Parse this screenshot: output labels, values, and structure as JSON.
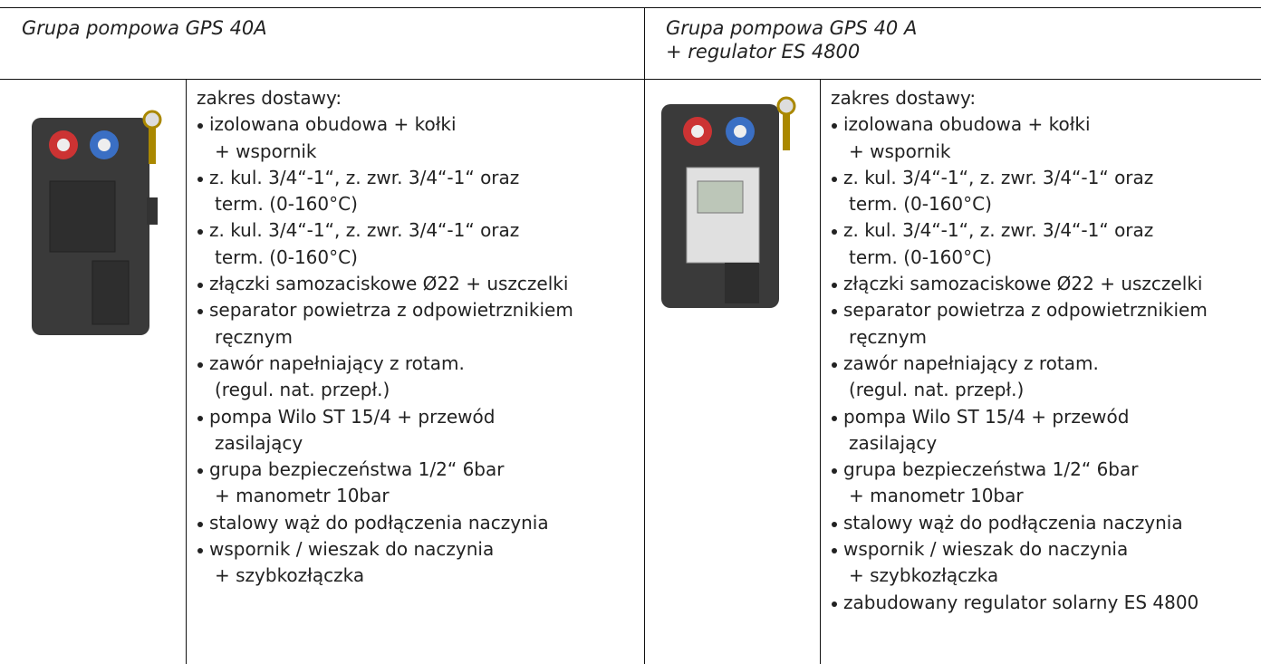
{
  "products": [
    {
      "title": [
        "Grupa pompowa GPS 40A"
      ],
      "intro": "zakres dostawy:",
      "items": [
        [
          "izolowana obudowa + kołki",
          "+ wspornik"
        ],
        [
          "z. kul. 3/4“-1“, z. zwr. 3/4“-1“ oraz",
          "term. (0-160°C)"
        ],
        [
          "z. kul. 3/4“-1“, z. zwr. 3/4“-1“ oraz",
          "term. (0-160°C)"
        ],
        [
          "złączki samozaciskowe Ø22 + uszczelki"
        ],
        [
          "separator powietrza z odpowietrznikiem",
          "ręcznym"
        ],
        [
          "zawór napełniający z rotam.",
          "(regul. nat. przepł.)"
        ],
        [
          "pompa Wilo ST 15/4 + przewód",
          "zasilający"
        ],
        [
          "grupa bezpieczeństwa 1/2“ 6bar",
          "+ manometr 10bar"
        ],
        [
          "stalowy wąż do podłączenia naczynia"
        ],
        [
          "wspornik / wieszak do naczynia",
          "+ szybkozłączka"
        ]
      ]
    },
    {
      "title": [
        "Grupa pompowa GPS 40 A",
        "+ regulator ES 4800"
      ],
      "intro": "zakres dostawy:",
      "items": [
        [
          "izolowana obudowa + kołki",
          "+ wspornik"
        ],
        [
          "z. kul. 3/4“-1“, z. zwr. 3/4“-1“ oraz",
          "term. (0-160°C)"
        ],
        [
          "z. kul. 3/4“-1“, z. zwr. 3/4“-1“ oraz",
          "term. (0-160°C)"
        ],
        [
          "złączki samozaciskowe Ø22 + uszczelki"
        ],
        [
          "separator powietrza z odpowietrznikiem",
          "ręcznym"
        ],
        [
          "zawór napełniający z rotam.",
          "(regul. nat. przepł.)"
        ],
        [
          "pompa Wilo ST 15/4 + przewód",
          "zasilający"
        ],
        [
          "grupa bezpieczeństwa 1/2“ 6bar",
          "+ manometr 10bar"
        ],
        [
          "stalowy wąż do podłączenia naczynia"
        ],
        [
          "wspornik / wieszak do naczynia",
          "+ szybkozłączka"
        ],
        [
          "zabudowany regulator solarny ES 4800"
        ]
      ]
    }
  ]
}
